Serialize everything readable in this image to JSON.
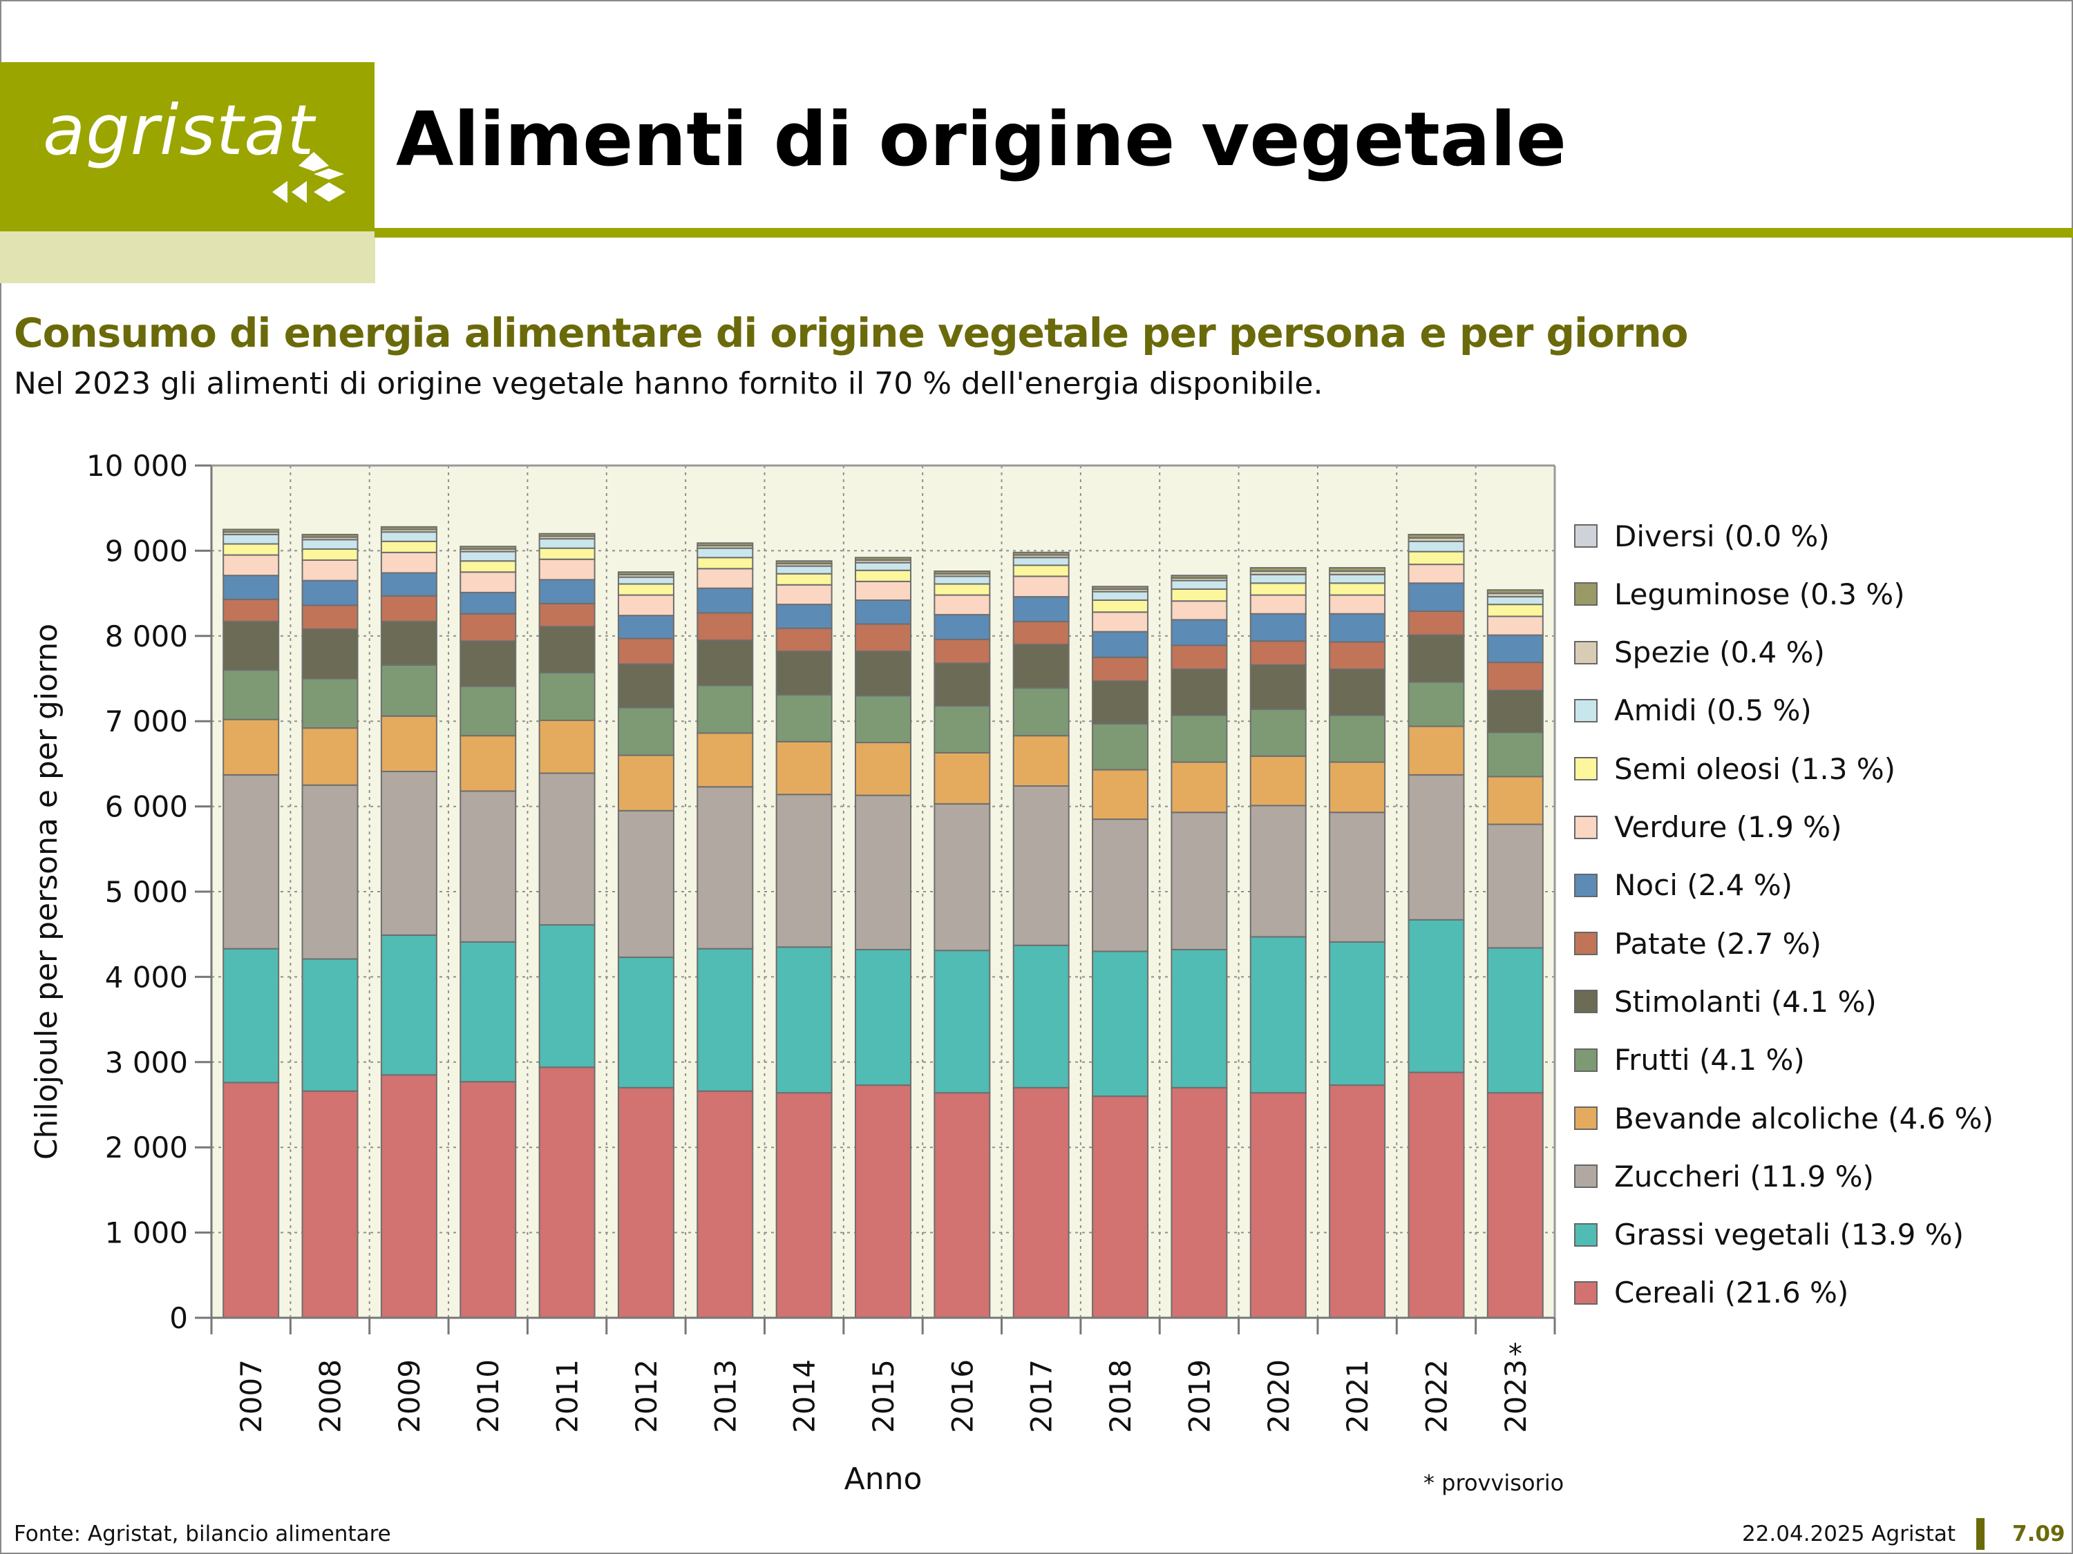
{
  "header": {
    "logo_text": "agristat",
    "title": "Alimenti di origine vegetale"
  },
  "subtitle": "Consumo di energia alimentare di origine vegetale per persona e per giorno",
  "lead": "Nel 2023 gli alimenti di origine vegetale hanno fornito il 70 % dell'energia disponibile.",
  "footer": {
    "source": "Fonte: Agristat, bilancio alimentare",
    "date": "22.04.2025 Agristat",
    "page": "7.09"
  },
  "note": "* provvisorio",
  "colors": {
    "brand": "#9aa500",
    "brand_light": "#e1e3b2",
    "subtitle": "#6b6a0a",
    "plot_bg": "#f5f5e3"
  },
  "chart_data": {
    "type": "bar",
    "stacked": true,
    "title": "",
    "xlabel": "Anno",
    "ylabel": "Chilojoule per persona e per giorno",
    "ylim": [
      0,
      10000
    ],
    "yticks": [
      0,
      1000,
      2000,
      3000,
      4000,
      5000,
      6000,
      7000,
      8000,
      9000,
      10000
    ],
    "ytick_labels": [
      "0",
      "1 000",
      "2 000",
      "3 000",
      "4 000",
      "5 000",
      "6 000",
      "7 000",
      "8 000",
      "9 000",
      "10 000"
    ],
    "categories": [
      "2007",
      "2008",
      "2009",
      "2010",
      "2011",
      "2012",
      "2013",
      "2014",
      "2015",
      "2016",
      "2017",
      "2018",
      "2019",
      "2020",
      "2021",
      "2022",
      "2023"
    ],
    "category_marks": [
      "",
      "",
      "",
      "",
      "",
      "",
      "",
      "",
      "",
      "",
      "",
      "",
      "",
      "",
      "",
      "",
      "*"
    ],
    "grid": true,
    "legend_position": "right",
    "series": [
      {
        "name": "Cereali (21.6 %)",
        "color": "#d27271",
        "values": [
          2760,
          2660,
          2850,
          2770,
          2940,
          2700,
          2660,
          2640,
          2730,
          2640,
          2700,
          2600,
          2700,
          2640,
          2730,
          2880,
          2640
        ]
      },
      {
        "name": "Grassi vegetali (13.9 %)",
        "color": "#50bcb4",
        "values": [
          1570,
          1550,
          1640,
          1640,
          1670,
          1530,
          1670,
          1710,
          1590,
          1670,
          1670,
          1700,
          1620,
          1830,
          1680,
          1790,
          1700
        ]
      },
      {
        "name": "Zuccheri (11.9 %)",
        "color": "#b0a8a1",
        "values": [
          2040,
          2040,
          1920,
          1770,
          1780,
          1720,
          1900,
          1790,
          1810,
          1720,
          1870,
          1550,
          1610,
          1540,
          1520,
          1700,
          1450
        ]
      },
      {
        "name": "Bevande alcoliche (4.6 %)",
        "color": "#e4ab5e",
        "values": [
          650,
          670,
          650,
          650,
          620,
          650,
          630,
          620,
          620,
          600,
          590,
          580,
          590,
          580,
          590,
          570,
          560
        ]
      },
      {
        "name": "Frutti (4.1 %)",
        "color": "#7d9a74",
        "values": [
          580,
          580,
          600,
          580,
          560,
          560,
          560,
          550,
          550,
          550,
          560,
          540,
          550,
          550,
          550,
          520,
          520
        ]
      },
      {
        "name": "Stimolanti (4.1 %)",
        "color": "#6b6b56",
        "values": [
          570,
          580,
          510,
          530,
          540,
          510,
          530,
          510,
          520,
          500,
          510,
          500,
          540,
          520,
          540,
          550,
          490
        ]
      },
      {
        "name": "Patate (2.7 %)",
        "color": "#c17458",
        "values": [
          260,
          280,
          300,
          320,
          270,
          300,
          320,
          270,
          320,
          280,
          270,
          280,
          280,
          280,
          320,
          280,
          330
        ]
      },
      {
        "name": "Noci (2.4 %)",
        "color": "#5c8bb5",
        "values": [
          280,
          290,
          270,
          250,
          280,
          270,
          290,
          280,
          280,
          290,
          290,
          300,
          300,
          320,
          330,
          330,
          320
        ]
      },
      {
        "name": "Verdure (1.9 %)",
        "color": "#fad6c3",
        "values": [
          240,
          240,
          240,
          240,
          240,
          240,
          230,
          230,
          220,
          230,
          240,
          230,
          220,
          220,
          220,
          220,
          220
        ]
      },
      {
        "name": "Semi oleosi (1.3 %)",
        "color": "#fcf69d",
        "values": [
          130,
          130,
          130,
          130,
          130,
          130,
          130,
          130,
          130,
          130,
          130,
          140,
          140,
          140,
          140,
          150,
          140
        ]
      },
      {
        "name": "Amidi (0.5 %)",
        "color": "#c9e6ec",
        "values": [
          110,
          110,
          110,
          110,
          110,
          80,
          110,
          90,
          90,
          90,
          90,
          100,
          100,
          100,
          100,
          120,
          90
        ]
      },
      {
        "name": "Spezie (0.4 %)",
        "color": "#d8cdb4",
        "values": [
          30,
          30,
          30,
          30,
          30,
          30,
          30,
          30,
          30,
          30,
          30,
          30,
          30,
          40,
          40,
          40,
          40
        ]
      },
      {
        "name": "Leguminose (0.3 %)",
        "color": "#999a65",
        "values": [
          30,
          30,
          30,
          30,
          30,
          30,
          30,
          30,
          30,
          30,
          30,
          30,
          30,
          40,
          40,
          40,
          40
        ]
      },
      {
        "name": "Diversi (0.0 %)",
        "color": "#cfd3d9",
        "values": [
          0,
          0,
          0,
          0,
          0,
          0,
          0,
          0,
          0,
          0,
          0,
          0,
          0,
          0,
          0,
          0,
          0
        ]
      }
    ]
  }
}
